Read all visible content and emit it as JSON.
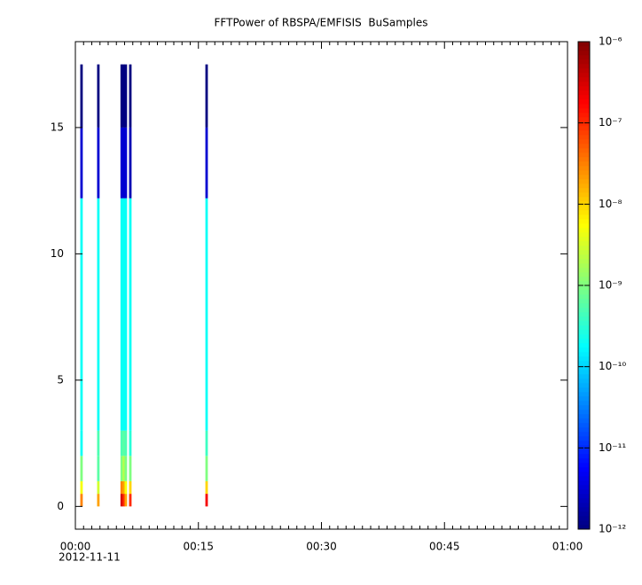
{
  "chart_data": {
    "type": "spectrogram",
    "title": "FFTPower of RBSPA/EMFISIS  BuSamples",
    "date_label": "2012-11-11",
    "xlim": [
      0,
      60
    ],
    "xticks": [
      {
        "value": 0,
        "label": "00:00"
      },
      {
        "value": 15,
        "label": "00:15"
      },
      {
        "value": 30,
        "label": "00:30"
      },
      {
        "value": 45,
        "label": "00:45"
      },
      {
        "value": 60,
        "label": "01:00"
      }
    ],
    "xminorticks": [
      1,
      2,
      3,
      4,
      5,
      6,
      7,
      8,
      9,
      10,
      11,
      12,
      13,
      14,
      16,
      17,
      18,
      19,
      20,
      21,
      22,
      23,
      24,
      25,
      26,
      27,
      28,
      29,
      31,
      32,
      33,
      34,
      35,
      36,
      37,
      38,
      39,
      40,
      41,
      42,
      43,
      44,
      46,
      47,
      48,
      49,
      50,
      51,
      52,
      53,
      54,
      55,
      56,
      57,
      58,
      59
    ],
    "ylim": [
      -0.9,
      18.4
    ],
    "yticks": [
      0,
      5,
      10,
      15
    ],
    "colorscale": "jet",
    "clog": true,
    "clim": [
      1e-12,
      1e-06
    ],
    "cticks": [
      {
        "value": 1e-12,
        "label": "10⁻¹²"
      },
      {
        "value": 1e-11,
        "label": "10⁻¹¹"
      },
      {
        "value": 1e-10,
        "label": "10⁻¹⁰"
      },
      {
        "value": 1e-09,
        "label": "10⁻⁹"
      },
      {
        "value": 1e-08,
        "label": "10⁻⁸"
      },
      {
        "value": 1e-07,
        "label": "10⁻⁷"
      },
      {
        "value": 1e-06,
        "label": "10⁻⁶"
      }
    ],
    "y_bins": [
      0,
      0.5,
      1,
      2,
      3,
      12.2,
      15,
      17.5
    ],
    "columns": [
      {
        "x": 0.75,
        "values": [
          3e-08,
          5e-09,
          1e-09,
          2e-10,
          2e-10,
          3e-12,
          1e-12
        ]
      },
      {
        "x": 2.8,
        "values": [
          2e-08,
          3e-09,
          6e-10,
          5e-10,
          2e-10,
          3e-12,
          1e-12
        ]
      },
      {
        "x": 5.65,
        "values": [
          3e-07,
          3e-08,
          1e-09,
          5e-10,
          2e-10,
          3e-12,
          1e-12
        ]
      },
      {
        "x": 5.9,
        "values": [
          1e-07,
          2e-08,
          2e-09,
          6e-10,
          2e-10,
          3e-12,
          1e-12
        ]
      },
      {
        "x": 6.15,
        "values": [
          2e-08,
          5e-09,
          1e-09,
          5e-10,
          2e-10,
          3e-12,
          1e-12
        ]
      },
      {
        "x": 6.7,
        "values": [
          1e-07,
          1e-08,
          1e-09,
          3e-10,
          2e-10,
          2e-12,
          1e-12
        ]
      },
      {
        "x": 16.0,
        "values": [
          2e-07,
          1e-08,
          1e-09,
          4e-10,
          2e-10,
          3e-12,
          1e-12
        ]
      }
    ]
  }
}
